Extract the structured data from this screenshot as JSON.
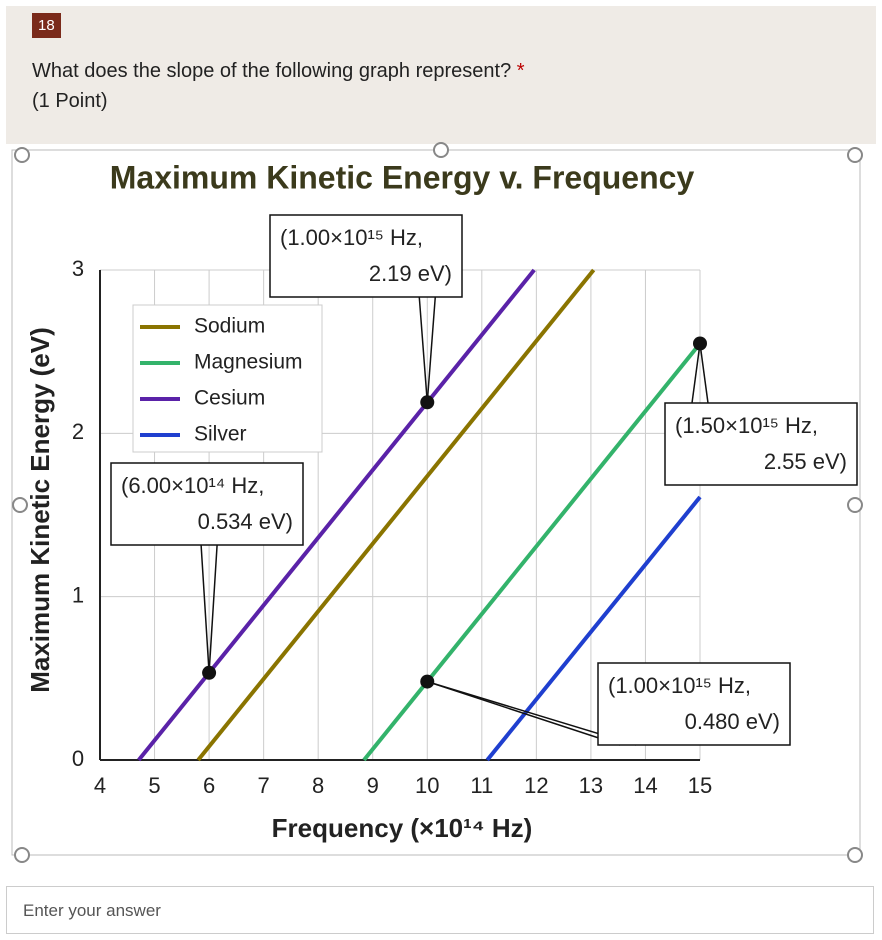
{
  "question": {
    "number": "18",
    "text": "What does the slope of the following graph represent?",
    "required": "*",
    "points": "(1 Point)"
  },
  "chart_data": {
    "type": "line",
    "title": "Maximum Kinetic Energy v. Frequency",
    "x_label": "Frequency (×10¹⁴ Hz)",
    "y_label": "Maximum Kinetic Energy (eV)",
    "xlim": [
      4,
      15
    ],
    "ylim": [
      0,
      3
    ],
    "xticks": [
      4,
      5,
      6,
      7,
      8,
      9,
      10,
      11,
      12,
      13,
      14,
      15
    ],
    "yticks": [
      0,
      1,
      2,
      3
    ],
    "grid": true,
    "legend": "upper left",
    "series": [
      {
        "name": "Sodium",
        "color": "#8a7400",
        "x": [
          5.8,
          13.05
        ],
        "values": [
          0,
          3
        ]
      },
      {
        "name": "Magnesium",
        "color": "#33b36b",
        "x": [
          8.84,
          15
        ],
        "values": [
          0,
          2.55
        ]
      },
      {
        "name": "Cesium",
        "color": "#5a22a8",
        "x": [
          4.71,
          11.96
        ],
        "values": [
          0,
          3
        ]
      },
      {
        "name": "Silver",
        "color": "#1f3fcf",
        "x": [
          11.1,
          15
        ],
        "values": [
          0,
          1.61
        ]
      }
    ],
    "annotations": [
      {
        "x": 10,
        "y": 2.19,
        "lines": [
          "(1.00×10¹⁵ Hz,",
          "2.19 eV)"
        ]
      },
      {
        "x": 15,
        "y": 2.55,
        "lines": [
          "(1.50×10¹⁵ Hz,",
          "2.55 eV)"
        ]
      },
      {
        "x": 6,
        "y": 0.534,
        "lines": [
          "(6.00×10¹⁴ Hz,",
          "0.534 eV)"
        ]
      },
      {
        "x": 10,
        "y": 0.48,
        "lines": [
          "(1.00×10¹⁵ Hz,",
          "0.480 eV)"
        ]
      }
    ]
  },
  "answer": {
    "placeholder": "Enter your answer"
  }
}
